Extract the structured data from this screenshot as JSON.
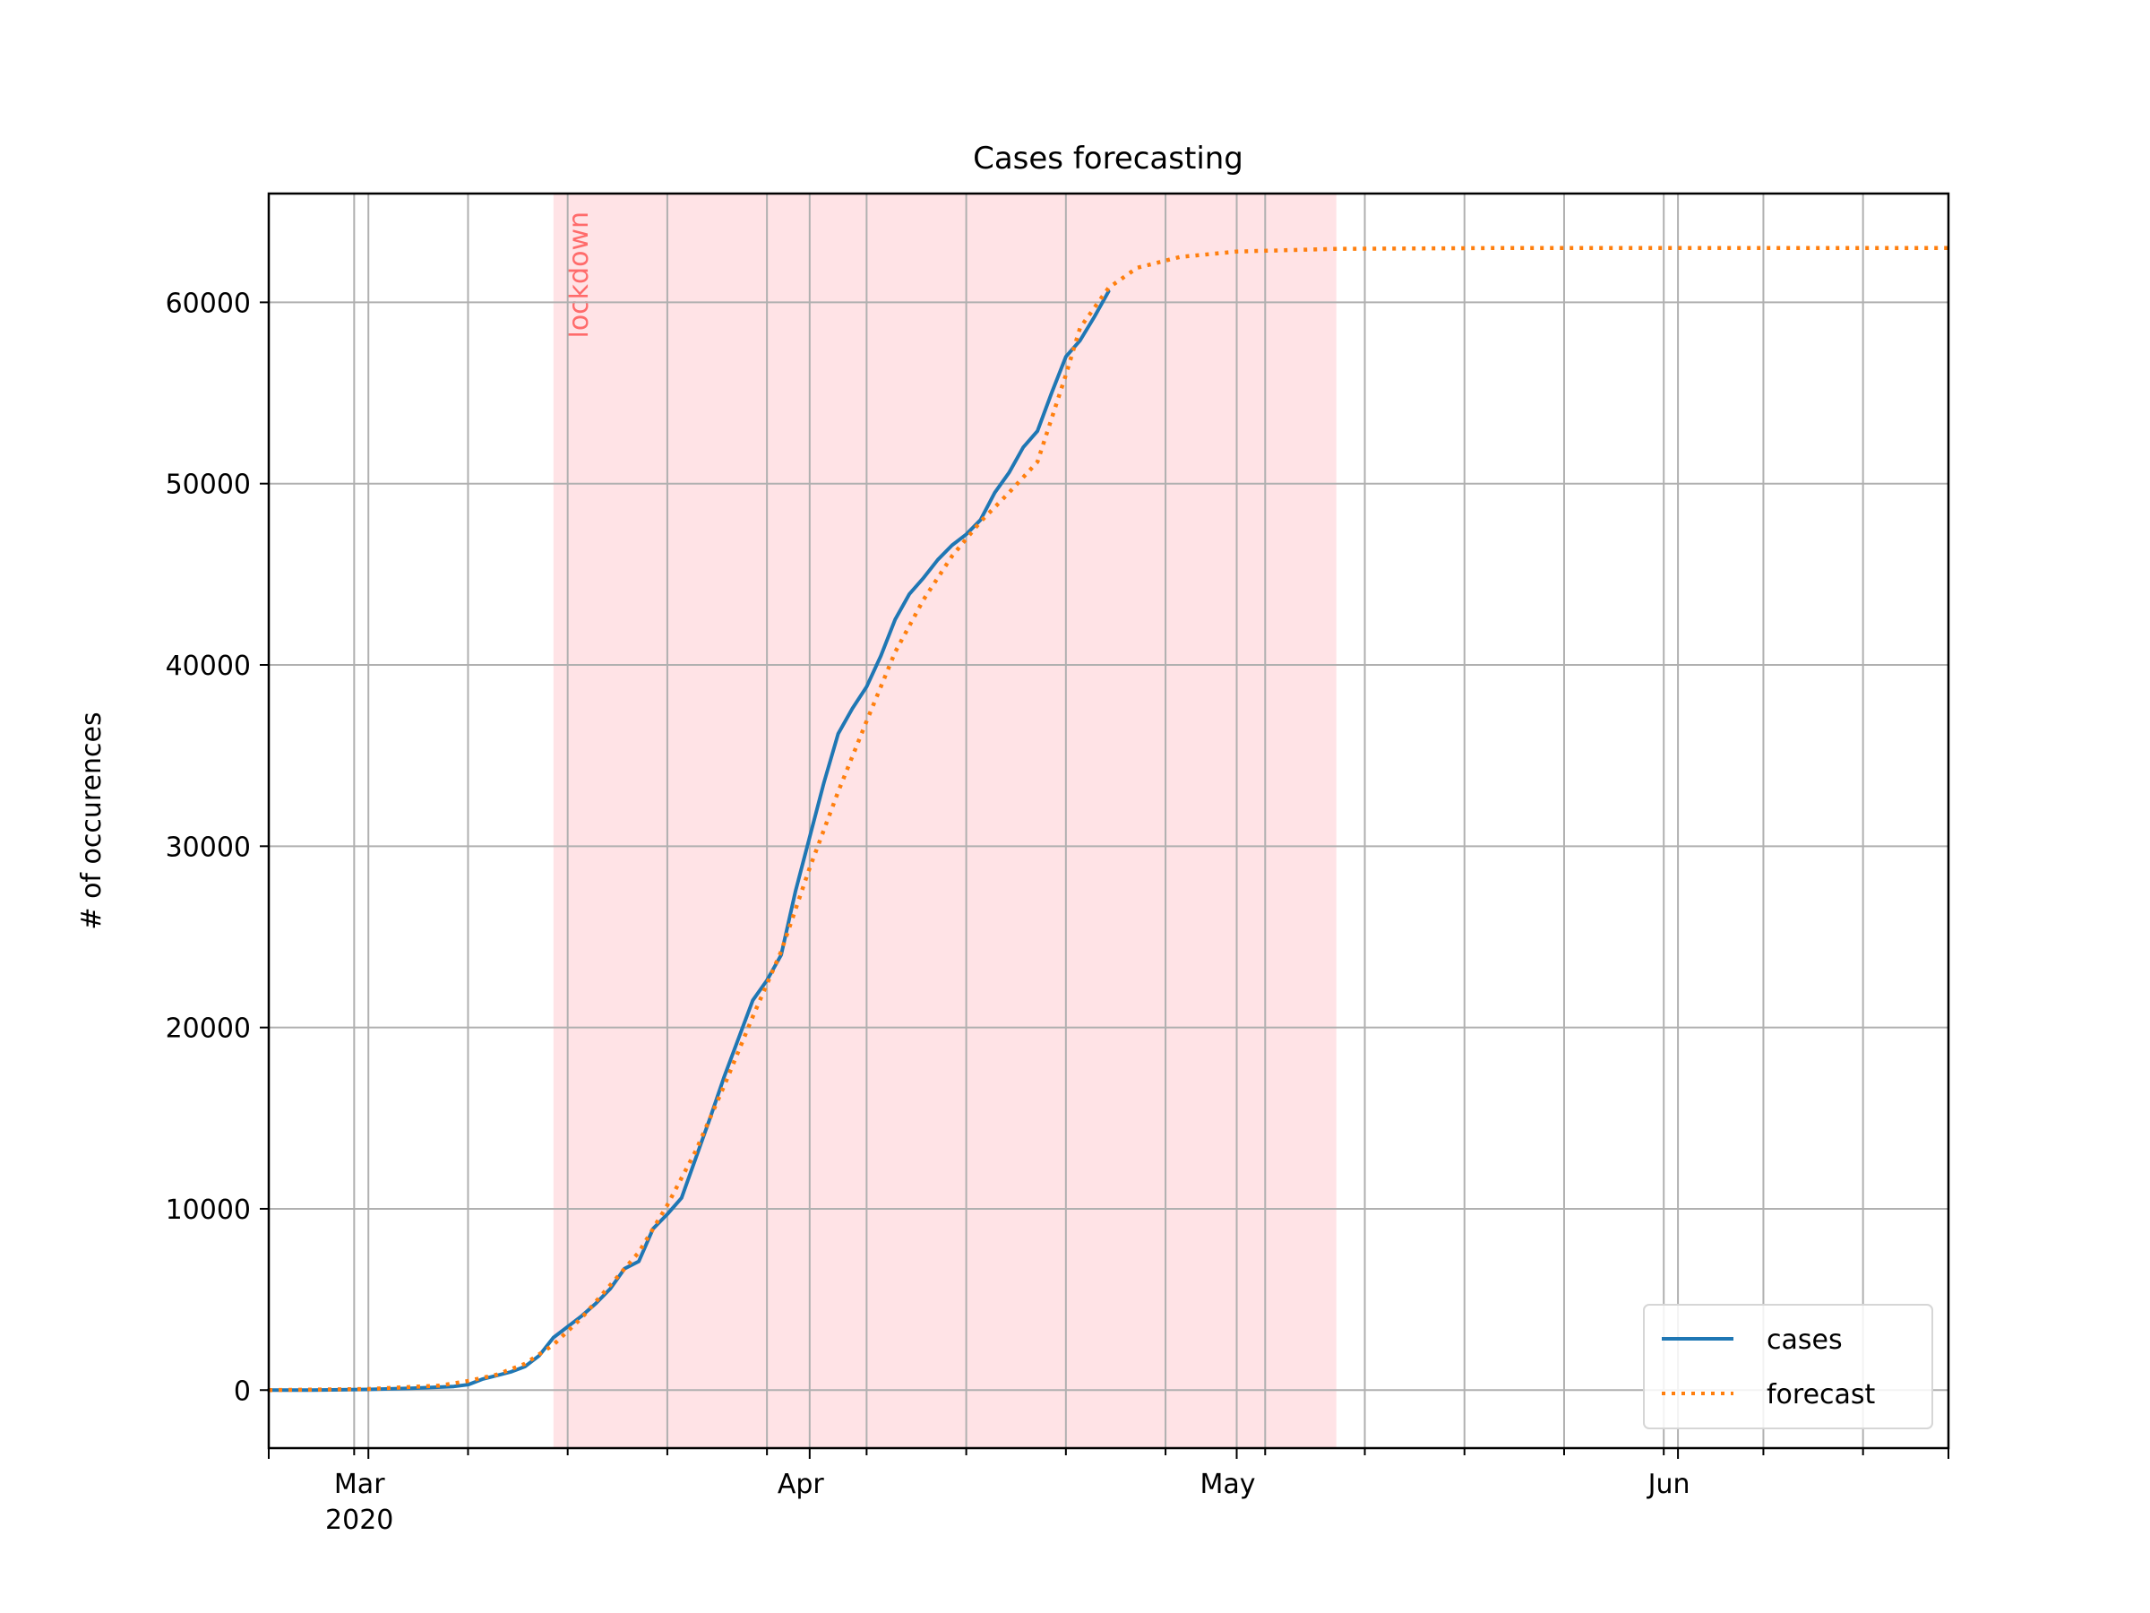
{
  "chart_data": {
    "type": "line",
    "title": "Cases forecasting",
    "xlabel": "",
    "ylabel": "# of occurences",
    "x_axis": {
      "type": "date",
      "range": [
        "2020-02-23",
        "2020-06-20"
      ],
      "tick_labels": [
        {
          "date": "2020-03-01",
          "label": "Mar",
          "sublabel": "2020"
        },
        {
          "date": "2020-04-01",
          "label": "Apr",
          "sublabel": ""
        },
        {
          "date": "2020-05-01",
          "label": "May",
          "sublabel": ""
        },
        {
          "date": "2020-06-01",
          "label": "Jun",
          "sublabel": ""
        }
      ],
      "weekly_gridlines": [
        "2020-02-29",
        "2020-03-08",
        "2020-03-15",
        "2020-03-22",
        "2020-03-29",
        "2020-04-05",
        "2020-04-12",
        "2020-04-19",
        "2020-04-26",
        "2020-05-03",
        "2020-05-10",
        "2020-05-17",
        "2020-05-24",
        "2020-05-31",
        "2020-06-07",
        "2020-06-14"
      ]
    },
    "ylim": [
      -3200,
      66000
    ],
    "y_ticks": [
      0,
      10000,
      20000,
      30000,
      40000,
      50000,
      60000
    ],
    "grid": true,
    "legend_position": "lower-right",
    "annotations": [
      {
        "type": "span",
        "label": "lockdown",
        "start": "2020-03-14",
        "end": "2020-05-08",
        "color": "#ffe3e6",
        "label_color": "#ff6b6b"
      }
    ],
    "series": [
      {
        "name": "cases",
        "color": "#1f77b4",
        "style": "solid",
        "points": [
          [
            "2020-02-23",
            0
          ],
          [
            "2020-02-26",
            0
          ],
          [
            "2020-03-01",
            40
          ],
          [
            "2020-03-04",
            100
          ],
          [
            "2020-03-07",
            200
          ],
          [
            "2020-03-08",
            300
          ],
          [
            "2020-03-09",
            600
          ],
          [
            "2020-03-10",
            800
          ],
          [
            "2020-03-11",
            1000
          ],
          [
            "2020-03-12",
            1300
          ],
          [
            "2020-03-13",
            1900
          ],
          [
            "2020-03-14",
            2900
          ],
          [
            "2020-03-15",
            3500
          ],
          [
            "2020-03-16",
            4100
          ],
          [
            "2020-03-17",
            4800
          ],
          [
            "2020-03-18",
            5600
          ],
          [
            "2020-03-19",
            6700
          ],
          [
            "2020-03-20",
            7100
          ],
          [
            "2020-03-21",
            8900
          ],
          [
            "2020-03-22",
            9700
          ],
          [
            "2020-03-23",
            10600
          ],
          [
            "2020-03-24",
            12800
          ],
          [
            "2020-03-25",
            15000
          ],
          [
            "2020-03-26",
            17300
          ],
          [
            "2020-03-27",
            19400
          ],
          [
            "2020-03-28",
            21500
          ],
          [
            "2020-03-29",
            22600
          ],
          [
            "2020-03-30",
            24000
          ],
          [
            "2020-03-31",
            27500
          ],
          [
            "2020-04-01",
            30500
          ],
          [
            "2020-04-02",
            33500
          ],
          [
            "2020-04-03",
            36200
          ],
          [
            "2020-04-04",
            37600
          ],
          [
            "2020-04-05",
            38800
          ],
          [
            "2020-04-06",
            40500
          ],
          [
            "2020-04-07",
            42500
          ],
          [
            "2020-04-08",
            43900
          ],
          [
            "2020-04-09",
            44800
          ],
          [
            "2020-04-10",
            45800
          ],
          [
            "2020-04-11",
            46600
          ],
          [
            "2020-04-12",
            47200
          ],
          [
            "2020-04-13",
            48000
          ],
          [
            "2020-04-14",
            49500
          ],
          [
            "2020-04-15",
            50600
          ],
          [
            "2020-04-16",
            52000
          ],
          [
            "2020-04-17",
            52900
          ],
          [
            "2020-04-18",
            55000
          ],
          [
            "2020-04-19",
            57000
          ],
          [
            "2020-04-20",
            57900
          ],
          [
            "2020-04-21",
            59200
          ],
          [
            "2020-04-22",
            60600
          ]
        ]
      },
      {
        "name": "forecast",
        "color": "#ff7f0e",
        "style": "dotted",
        "points": [
          [
            "2020-02-23",
            0
          ],
          [
            "2020-03-01",
            60
          ],
          [
            "2020-03-06",
            250
          ],
          [
            "2020-03-08",
            500
          ],
          [
            "2020-03-10",
            850
          ],
          [
            "2020-03-12",
            1450
          ],
          [
            "2020-03-14",
            2500
          ],
          [
            "2020-03-16",
            4000
          ],
          [
            "2020-03-18",
            5800
          ],
          [
            "2020-03-20",
            7600
          ],
          [
            "2020-03-22",
            10200
          ],
          [
            "2020-03-24",
            13200
          ],
          [
            "2020-03-26",
            16800
          ],
          [
            "2020-03-28",
            20600
          ],
          [
            "2020-03-30",
            24200
          ],
          [
            "2020-04-01",
            28800
          ],
          [
            "2020-04-03",
            33000
          ],
          [
            "2020-04-05",
            36900
          ],
          [
            "2020-04-07",
            40700
          ],
          [
            "2020-04-09",
            43600
          ],
          [
            "2020-04-11",
            46000
          ],
          [
            "2020-04-13",
            47900
          ],
          [
            "2020-04-15",
            49500
          ],
          [
            "2020-04-17",
            51200
          ],
          [
            "2020-04-19",
            56000
          ],
          [
            "2020-04-20",
            58600
          ],
          [
            "2020-04-22",
            60800
          ],
          [
            "2020-04-24",
            61900
          ],
          [
            "2020-04-27",
            62500
          ],
          [
            "2020-05-01",
            62800
          ],
          [
            "2020-05-08",
            62950
          ],
          [
            "2020-05-20",
            63000
          ],
          [
            "2020-06-20",
            63000
          ]
        ]
      }
    ]
  }
}
